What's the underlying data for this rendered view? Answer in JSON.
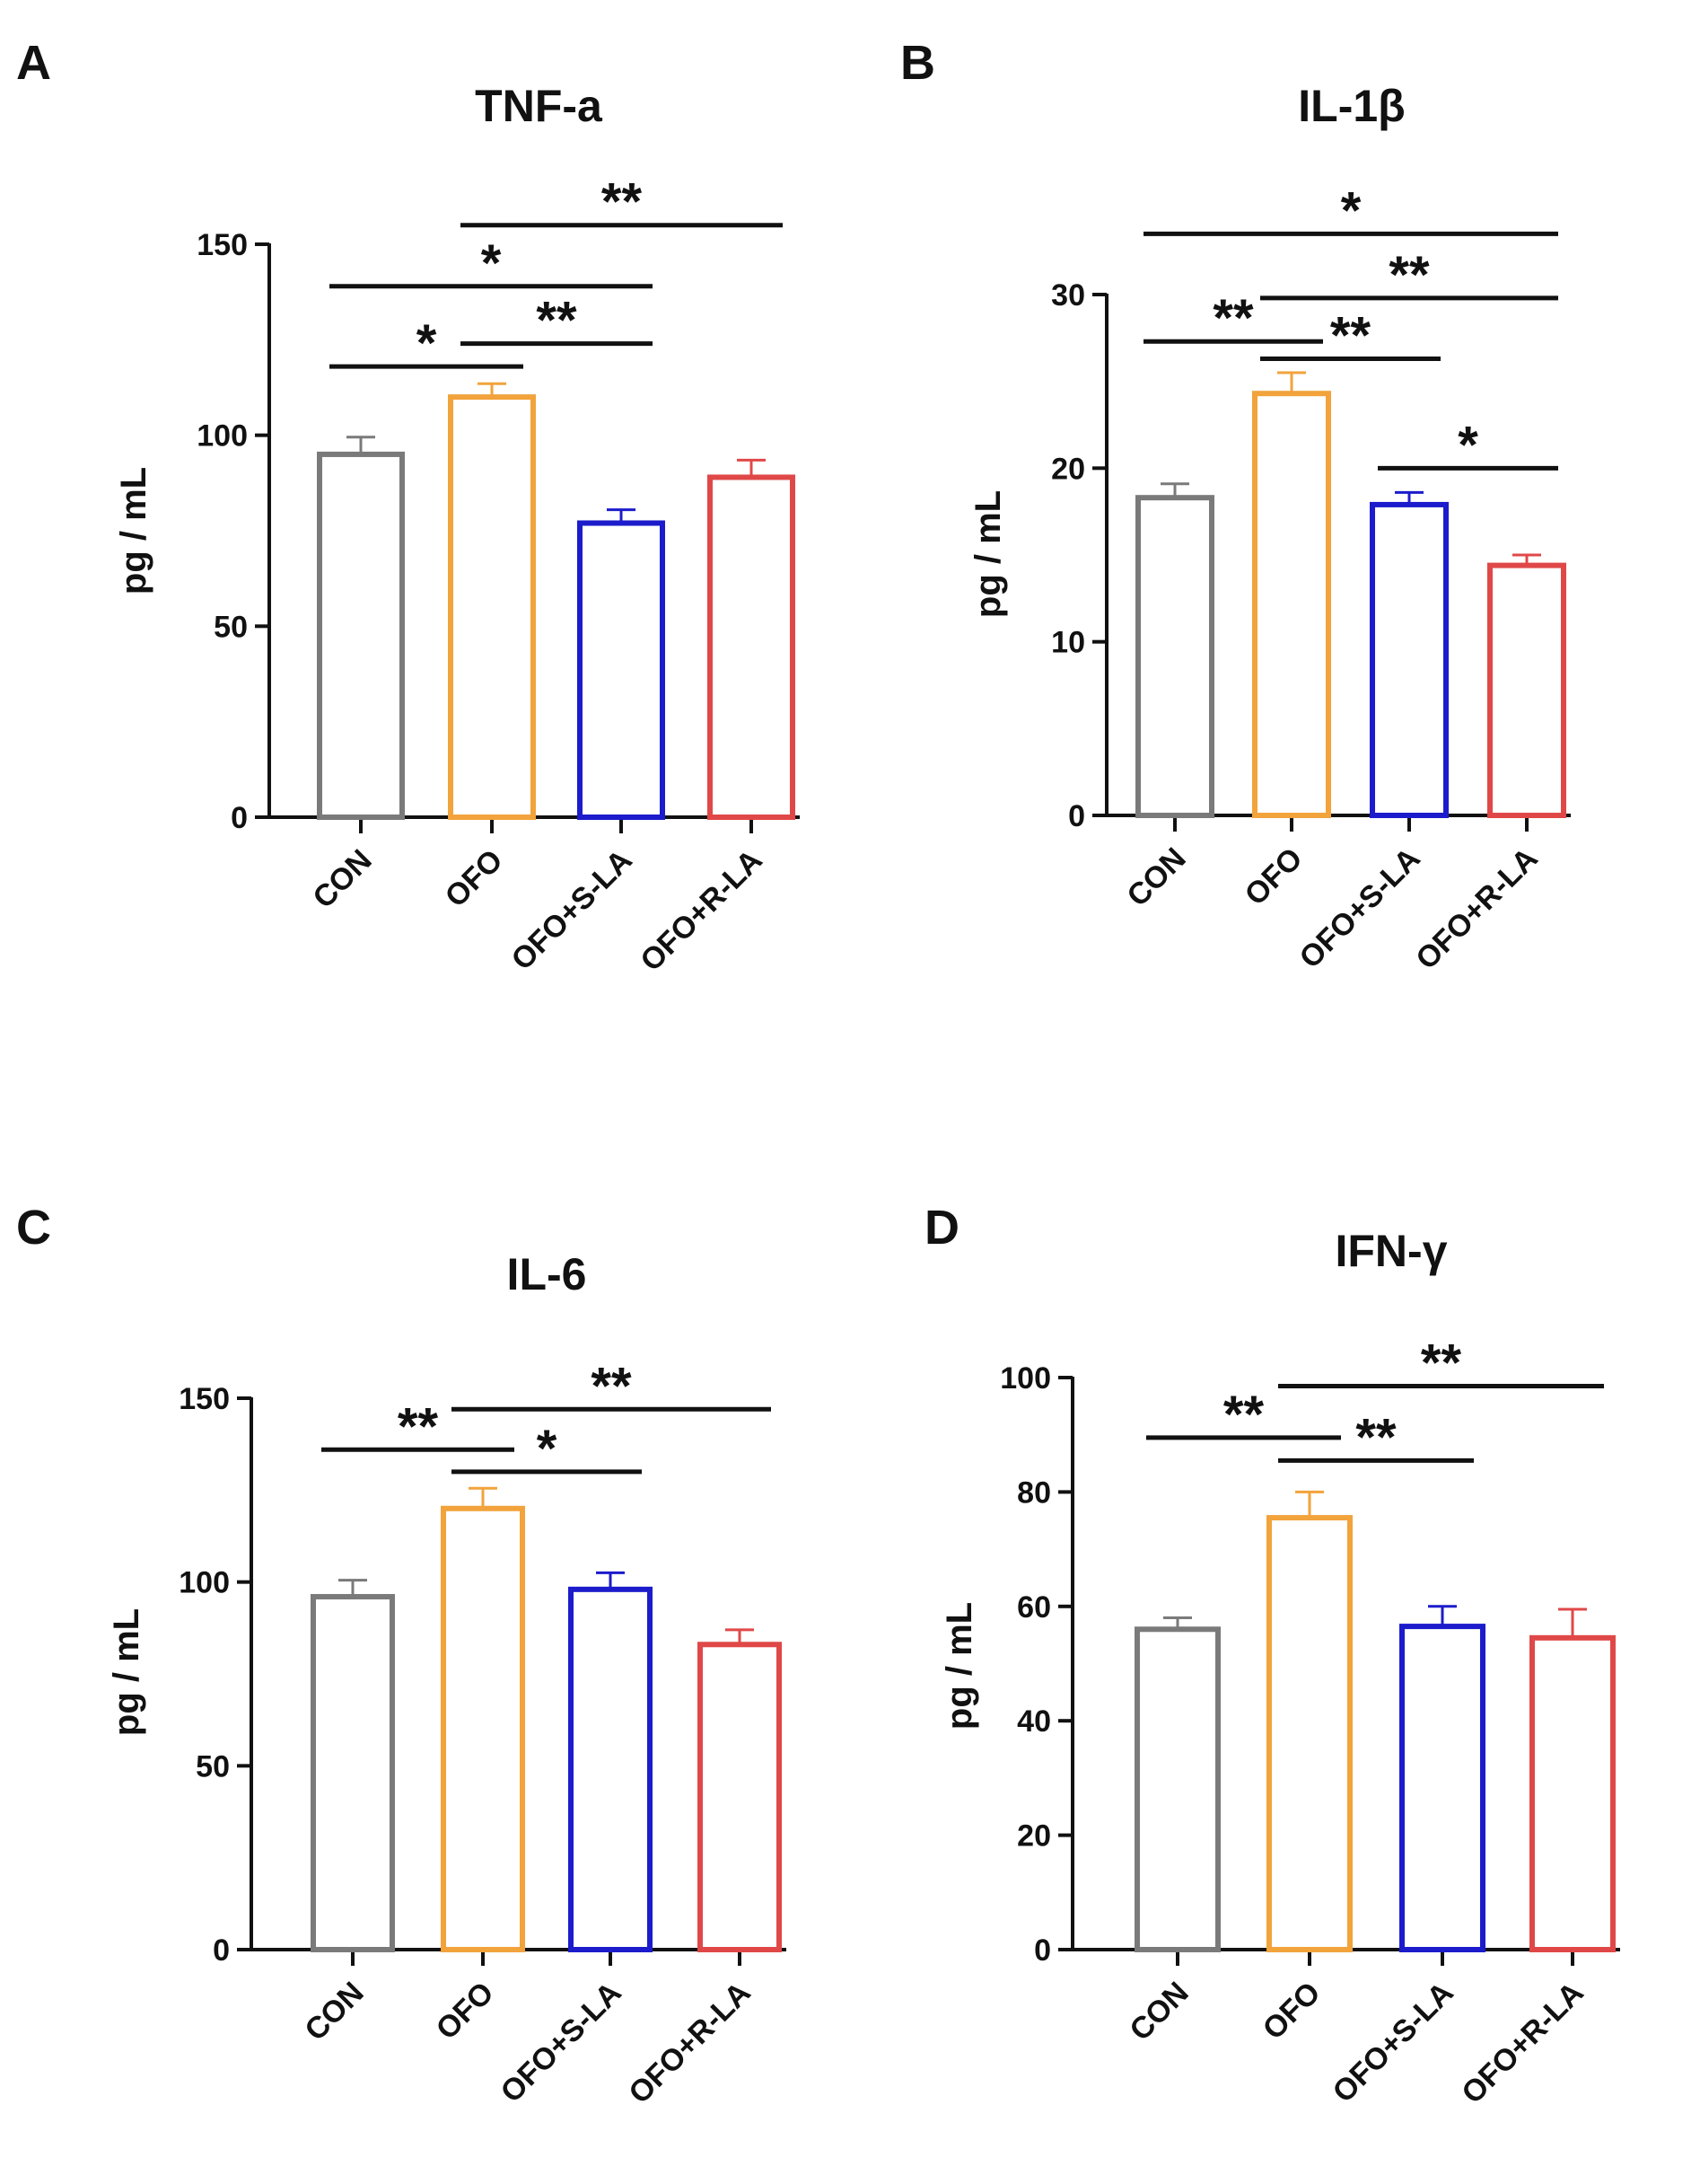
{
  "chart_data": [
    {
      "type": "bar",
      "panel": "A",
      "title": "TNF-a",
      "ylabel": "pg / mL",
      "ylim": [
        0,
        150
      ],
      "yticks": [
        0,
        50,
        100,
        150
      ],
      "categories": [
        "CON",
        "OFO",
        "OFO+S-LA",
        "OFO+R-LA"
      ],
      "values": [
        95,
        110,
        77,
        89
      ],
      "errors": [
        4.5,
        3.5,
        3.5,
        4.5
      ],
      "bar_colors": [
        "#7a7a7a",
        "#f2a33c",
        "#1c1ccc",
        "#e04848"
      ],
      "significance": [
        {
          "from": 0,
          "to": 1,
          "label": "*",
          "y": 118
        },
        {
          "from": 1,
          "to": 2,
          "label": "**",
          "y": 124
        },
        {
          "from": 0,
          "to": 2,
          "label": "*",
          "y": 139
        },
        {
          "from": 1,
          "to": 3,
          "label": "**",
          "y": 155
        }
      ]
    },
    {
      "type": "bar",
      "panel": "B",
      "title": "IL-1β",
      "ylabel": "pg / mL",
      "ylim": [
        0,
        30
      ],
      "yticks": [
        0,
        10,
        20,
        30
      ],
      "categories": [
        "CON",
        "OFO",
        "OFO+S-LA",
        "OFO+R-LA"
      ],
      "values": [
        18.3,
        24.3,
        17.9,
        14.4
      ],
      "errors": [
        0.8,
        1.2,
        0.7,
        0.6
      ],
      "bar_colors": [
        "#7a7a7a",
        "#f2a33c",
        "#1c1ccc",
        "#e04848"
      ],
      "significance": [
        {
          "from": 2,
          "to": 3,
          "label": "*",
          "y": 20
        },
        {
          "from": 1,
          "to": 2,
          "label": "**",
          "y": 26.3
        },
        {
          "from": 0,
          "to": 1,
          "label": "**",
          "y": 27.3
        },
        {
          "from": 1,
          "to": 3,
          "label": "**",
          "y": 29.8
        },
        {
          "from": 0,
          "to": 3,
          "label": "*",
          "y": 33.5
        }
      ]
    },
    {
      "type": "bar",
      "panel": "C",
      "title": "IL-6",
      "ylabel": "pg / mL",
      "ylim": [
        0,
        150
      ],
      "yticks": [
        0,
        50,
        100,
        150
      ],
      "categories": [
        "CON",
        "OFO",
        "OFO+S-LA",
        "OFO+R-LA"
      ],
      "values": [
        96,
        120,
        98,
        83
      ],
      "errors": [
        4.5,
        5.5,
        4.5,
        4
      ],
      "bar_colors": [
        "#7a7a7a",
        "#f2a33c",
        "#1c1ccc",
        "#e04848"
      ],
      "significance": [
        {
          "from": 1,
          "to": 2,
          "label": "*",
          "y": 130
        },
        {
          "from": 0,
          "to": 1,
          "label": "**",
          "y": 136
        },
        {
          "from": 1,
          "to": 3,
          "label": "**",
          "y": 147
        }
      ]
    },
    {
      "type": "bar",
      "panel": "D",
      "title": "IFN-γ",
      "ylabel": "pg / mL",
      "ylim": [
        0,
        100
      ],
      "yticks": [
        0,
        20,
        40,
        60,
        80,
        100
      ],
      "categories": [
        "CON",
        "OFO",
        "OFO+S-LA",
        "OFO+R-LA"
      ],
      "values": [
        56,
        75.5,
        56.5,
        54.5
      ],
      "errors": [
        2,
        4.5,
        3.5,
        5
      ],
      "bar_colors": [
        "#7a7a7a",
        "#f2a33c",
        "#1c1ccc",
        "#e04848"
      ],
      "significance": [
        {
          "from": 1,
          "to": 3,
          "label": "**",
          "y": 98.5
        },
        {
          "from": 0,
          "to": 1,
          "label": "**",
          "y": 89.5
        },
        {
          "from": 1,
          "to": 2,
          "label": "**",
          "y": 85.5
        }
      ]
    }
  ]
}
